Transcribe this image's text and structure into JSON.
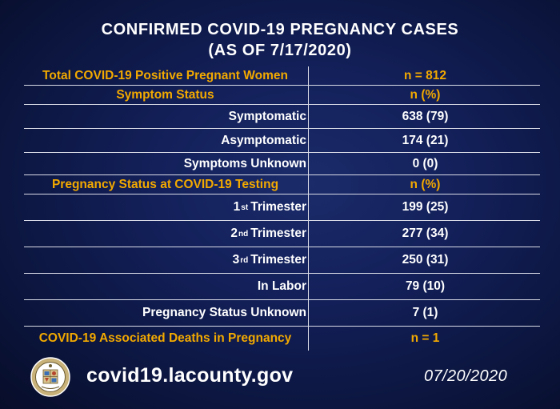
{
  "title": {
    "line1": "CONFIRMED COVID-19 PREGNANCY CASES",
    "line2": "(AS OF 7/17/2020)"
  },
  "rows": [
    {
      "label": "Total COVID-19 Positive Pregnant Women",
      "value": "n = 812"
    },
    {
      "label": "Symptom Status",
      "value": "n (%)"
    },
    {
      "label": "Symptomatic",
      "value": "638 (79)"
    },
    {
      "label": "Asymptomatic",
      "value": "174 (21)"
    },
    {
      "label": "Symptoms Unknown",
      "value": "0 (0)"
    },
    {
      "label": "Pregnancy Status at COVID-19 Testing",
      "value": "n (%)"
    },
    {
      "label_num": "1",
      "label_sup": "st",
      "label_rest": "Trimester",
      "value": "199 (25)"
    },
    {
      "label_num": "2",
      "label_sup": "nd",
      "label_rest": "Trimester",
      "value": "277 (34)"
    },
    {
      "label_num": "3",
      "label_sup": "rd",
      "label_rest": "Trimester",
      "value": "250 (31)"
    },
    {
      "label": "In Labor",
      "value": "79 (10)"
    },
    {
      "label": "Pregnancy Status Unknown",
      "value": "7 (1)"
    },
    {
      "label": "COVID-19 Associated Deaths in Pregnancy",
      "value": "n = 1"
    }
  ],
  "footer": {
    "url": "covid19.lacounty.gov",
    "date": "07/20/2020",
    "seal_icon": "county-seal-icon"
  },
  "colors": {
    "accent": "#f2a900",
    "background": "#13205a",
    "text": "#ffffff"
  }
}
